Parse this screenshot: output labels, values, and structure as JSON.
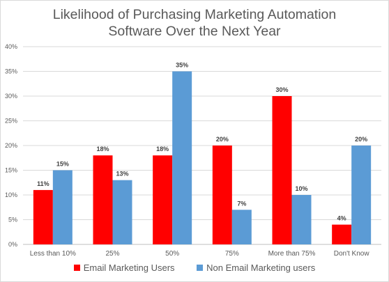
{
  "chart_data": {
    "type": "bar",
    "title_line1": "Likelihood of Purchasing Marketing Automation",
    "title_line2": "Software Over the Next Year",
    "categories": [
      "Less than 10%",
      "25%",
      "50%",
      "75%",
      "More than 75%",
      "Don't Know"
    ],
    "series": [
      {
        "name": "Email Marketing Users",
        "color": "#ff0000",
        "values": [
          11,
          18,
          18,
          20,
          30,
          4
        ],
        "labels": [
          "11%",
          "18%",
          "18%",
          "20%",
          "30%",
          "4%"
        ]
      },
      {
        "name": "Non Email Marketing users",
        "color": "#5b9bd5",
        "values": [
          15,
          13,
          35,
          7,
          10,
          20
        ],
        "labels": [
          "15%",
          "13%",
          "35%",
          "7%",
          "10%",
          "20%"
        ]
      }
    ],
    "ylim": [
      0,
      40
    ],
    "yticks": [
      "0%",
      "5%",
      "10%",
      "15%",
      "20%",
      "25%",
      "30%",
      "35%",
      "40%"
    ],
    "grid": true,
    "legend_position": "bottom"
  }
}
